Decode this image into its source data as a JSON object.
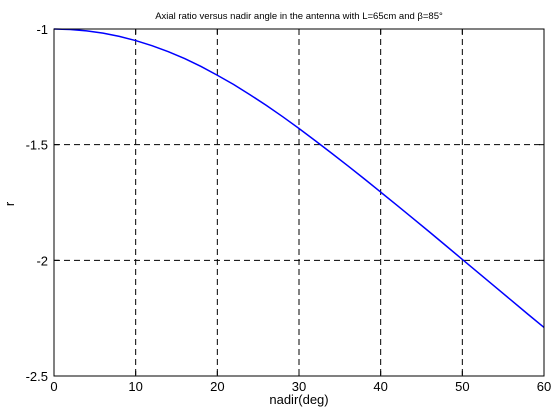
{
  "chart_data": {
    "type": "line",
    "title": "Axial ratio versus nadir angle in the antenna with L=65cm and β=85°",
    "xlabel": "nadir(deg)",
    "ylabel": "r",
    "xlim": [
      0,
      60
    ],
    "ylim": [
      -2.5,
      -1
    ],
    "xticks": [
      0,
      10,
      20,
      30,
      40,
      50,
      60
    ],
    "yticks": [
      -1,
      -1.5,
      -2,
      -2.5
    ],
    "xtick_labels": [
      "0",
      "10",
      "20",
      "30",
      "40",
      "50",
      "60"
    ],
    "ytick_labels": [
      "-1",
      "-1.5",
      "-2",
      "-2.5"
    ],
    "grid": true,
    "grid_style": "dashed",
    "series": [
      {
        "color": "#0000ff",
        "x": [
          0,
          2,
          4,
          6,
          8,
          10,
          12,
          14,
          16,
          18,
          20,
          22,
          24,
          26,
          28,
          30,
          32,
          34,
          36,
          38,
          40,
          42,
          44,
          46,
          48,
          50,
          52,
          54,
          56,
          58,
          60
        ],
        "y": [
          -1.0,
          -1.002,
          -1.008,
          -1.018,
          -1.032,
          -1.05,
          -1.072,
          -1.098,
          -1.128,
          -1.162,
          -1.2,
          -1.24,
          -1.284,
          -1.33,
          -1.379,
          -1.43,
          -1.483,
          -1.537,
          -1.592,
          -1.648,
          -1.705,
          -1.762,
          -1.82,
          -1.878,
          -1.937,
          -1.996,
          -2.055,
          -2.114,
          -2.173,
          -2.232,
          -2.29
        ]
      }
    ]
  }
}
